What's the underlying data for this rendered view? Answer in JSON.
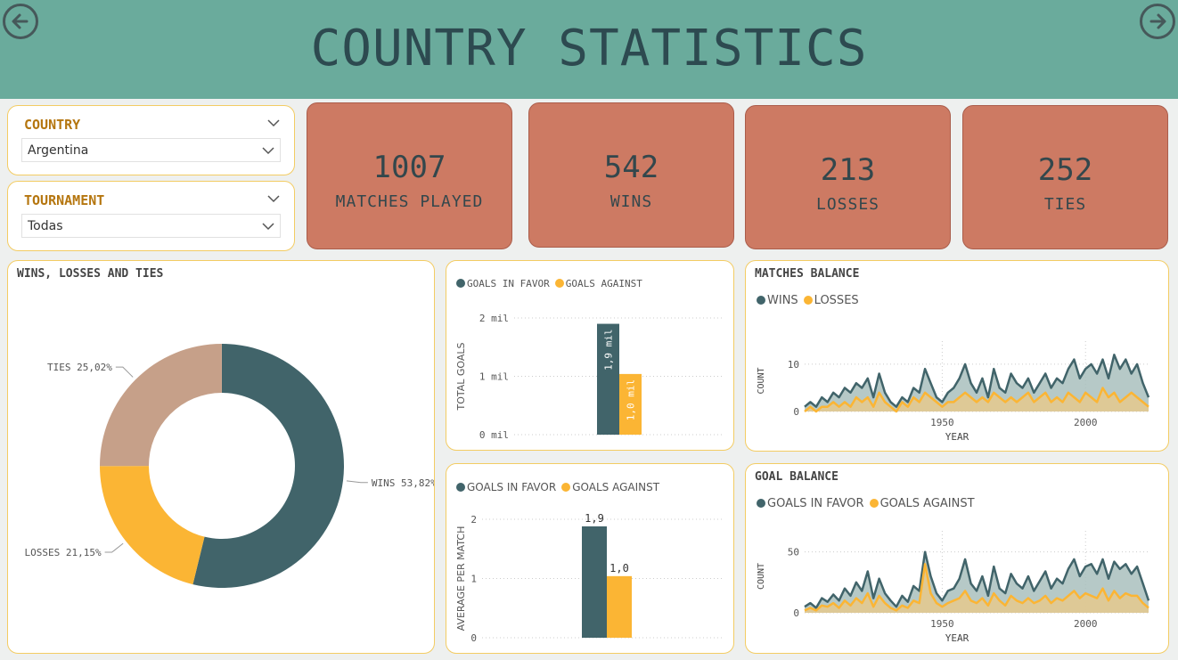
{
  "header": {
    "title": "COUNTRY STATISTICS"
  },
  "filters": {
    "country": {
      "label": "COUNTRY",
      "value": "Argentina"
    },
    "tournament": {
      "label": "TOURNAMENT",
      "value": "Todas"
    }
  },
  "kpis": [
    {
      "value": "1007",
      "label": "MATCHES PLAYED"
    },
    {
      "value": "542",
      "label": "WINS"
    },
    {
      "value": "213",
      "label": "LOSSES"
    },
    {
      "value": "252",
      "label": "TIES"
    }
  ],
  "colors": {
    "dark": "#41646a",
    "yellow": "#fbb534",
    "tan": "#c6a089",
    "kpi": "#cd7a63",
    "header": "#6aab9c"
  },
  "chart_data": [
    {
      "id": "donut",
      "type": "pie",
      "title": "WINS, LOSSES AND TIES",
      "slices": [
        {
          "name": "WINS",
          "pct": 53.82,
          "label": "WINS 53,82%",
          "color": "#41646a"
        },
        {
          "name": "LOSSES",
          "pct": 21.15,
          "label": "LOSSES 21,15%",
          "color": "#fbb534"
        },
        {
          "name": "TIES",
          "pct": 25.02,
          "label": "TIES 25,02%",
          "color": "#c6a089"
        }
      ]
    },
    {
      "id": "goals-total",
      "type": "bar",
      "legend": [
        "GOALS IN FAVOR",
        "GOALS AGAINST"
      ],
      "ylabel": "TOTAL GOALS",
      "yticks": [
        "0 mil",
        "1 mil",
        "2 mil"
      ],
      "ylim": [
        0,
        2
      ],
      "series": [
        {
          "name": "GOALS IN FAVOR",
          "value": 1.9,
          "label": "1,9 mil",
          "color": "#41646a"
        },
        {
          "name": "GOALS AGAINST",
          "value": 1.04,
          "label": "1,0 mil",
          "color": "#fbb534"
        }
      ]
    },
    {
      "id": "goals-avg",
      "type": "bar",
      "legend": [
        "GOALS IN FAVOR",
        "GOALS AGAINST"
      ],
      "ylabel": "AVERAGE PER MATCH",
      "yticks": [
        "0",
        "1",
        "2"
      ],
      "ylim": [
        0,
        2
      ],
      "series": [
        {
          "name": "GOALS IN FAVOR",
          "value": 1.88,
          "label": "1,9",
          "color": "#41646a"
        },
        {
          "name": "GOALS AGAINST",
          "value": 1.04,
          "label": "1,0",
          "color": "#fbb534"
        }
      ]
    },
    {
      "id": "matches-balance",
      "type": "area",
      "title": "MATCHES BALANCE",
      "legend": [
        "WINS",
        "LOSSES"
      ],
      "xlabel": "YEAR",
      "ylabel": "COUNT",
      "xticks": [
        1950,
        2000
      ],
      "yticks": [
        0,
        10
      ],
      "xlim": [
        1902,
        2022
      ],
      "ylim": [
        0,
        13
      ],
      "x": [
        1902,
        1904,
        1906,
        1908,
        1910,
        1912,
        1914,
        1916,
        1918,
        1920,
        1922,
        1924,
        1926,
        1928,
        1930,
        1932,
        1934,
        1936,
        1938,
        1940,
        1942,
        1944,
        1946,
        1948,
        1950,
        1952,
        1954,
        1956,
        1958,
        1960,
        1962,
        1964,
        1966,
        1968,
        1970,
        1972,
        1974,
        1976,
        1978,
        1980,
        1982,
        1984,
        1986,
        1988,
        1990,
        1992,
        1994,
        1996,
        1998,
        2000,
        2002,
        2004,
        2006,
        2008,
        2010,
        2012,
        2014,
        2016,
        2018,
        2020,
        2022
      ],
      "series": [
        {
          "name": "WINS",
          "color": "#41646a",
          "values": [
            1,
            2,
            1,
            3,
            2,
            4,
            3,
            5,
            4,
            6,
            5,
            7,
            3,
            8,
            4,
            2,
            1,
            3,
            2,
            5,
            4,
            9,
            6,
            3,
            2,
            4,
            5,
            7,
            10,
            6,
            4,
            7,
            3,
            9,
            5,
            4,
            8,
            6,
            5,
            7,
            4,
            6,
            8,
            5,
            7,
            6,
            9,
            11,
            7,
            9,
            10,
            8,
            11,
            7,
            12,
            9,
            11,
            8,
            10,
            6,
            3
          ]
        },
        {
          "name": "LOSSES",
          "color": "#fbb534",
          "values": [
            0,
            1,
            0,
            1,
            1,
            2,
            1,
            2,
            1,
            3,
            2,
            3,
            1,
            4,
            2,
            1,
            0,
            2,
            1,
            3,
            2,
            4,
            3,
            2,
            1,
            2,
            2,
            3,
            4,
            3,
            2,
            3,
            2,
            4,
            3,
            2,
            3,
            2,
            3,
            4,
            2,
            3,
            4,
            2,
            3,
            2,
            4,
            3,
            2,
            4,
            3,
            2,
            5,
            3,
            4,
            2,
            3,
            4,
            3,
            2,
            1
          ]
        }
      ]
    },
    {
      "id": "goal-balance",
      "type": "area",
      "title": "GOAL BALANCE",
      "legend": [
        "GOALS IN FAVOR",
        "GOALS AGAINST"
      ],
      "xlabel": "YEAR",
      "ylabel": "COUNT",
      "xticks": [
        1950,
        2000
      ],
      "yticks": [
        0,
        50
      ],
      "xlim": [
        1902,
        2022
      ],
      "ylim": [
        0,
        60
      ],
      "x": [
        1902,
        1904,
        1906,
        1908,
        1910,
        1912,
        1914,
        1916,
        1918,
        1920,
        1922,
        1924,
        1926,
        1928,
        1930,
        1932,
        1934,
        1936,
        1938,
        1940,
        1942,
        1944,
        1946,
        1948,
        1950,
        1952,
        1954,
        1956,
        1958,
        1960,
        1962,
        1964,
        1966,
        1968,
        1970,
        1972,
        1974,
        1976,
        1978,
        1980,
        1982,
        1984,
        1986,
        1988,
        1990,
        1992,
        1994,
        1996,
        1998,
        2000,
        2002,
        2004,
        2006,
        2008,
        2010,
        2012,
        2014,
        2016,
        2018,
        2020,
        2022
      ],
      "series": [
        {
          "name": "GOALS IN FAVOR",
          "color": "#41646a",
          "values": [
            5,
            8,
            4,
            12,
            9,
            15,
            10,
            20,
            14,
            25,
            18,
            34,
            12,
            28,
            16,
            10,
            5,
            14,
            9,
            22,
            18,
            50,
            30,
            16,
            10,
            18,
            20,
            28,
            44,
            24,
            18,
            30,
            14,
            38,
            20,
            16,
            32,
            24,
            20,
            30,
            18,
            26,
            34,
            20,
            28,
            24,
            36,
            44,
            30,
            38,
            40,
            32,
            44,
            28,
            42,
            36,
            40,
            32,
            38,
            24,
            10
          ]
        },
        {
          "name": "GOALS AGAINST",
          "color": "#fbb534",
          "values": [
            2,
            4,
            2,
            6,
            5,
            8,
            4,
            10,
            6,
            12,
            8,
            16,
            5,
            14,
            8,
            4,
            2,
            6,
            4,
            10,
            8,
            40,
            16,
            8,
            5,
            8,
            10,
            12,
            18,
            10,
            8,
            12,
            6,
            16,
            10,
            6,
            14,
            10,
            8,
            12,
            8,
            10,
            14,
            8,
            12,
            10,
            14,
            18,
            12,
            16,
            14,
            12,
            20,
            10,
            18,
            12,
            16,
            14,
            14,
            8,
            4
          ]
        }
      ]
    }
  ]
}
